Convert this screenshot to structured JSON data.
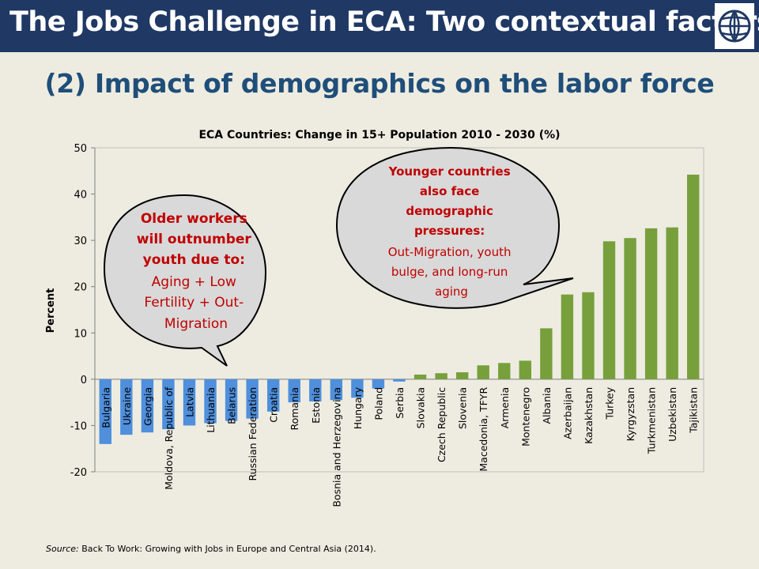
{
  "header": {
    "title": "The Jobs Challenge in ECA: Two contextual factors",
    "subtitle": "(2) Impact of demographics on the labor force"
  },
  "colors": {
    "header_bg": "#1f3864",
    "negative_bar": "#4f8fdc",
    "positive_bar": "#77a03c",
    "callout_text": "#c00000"
  },
  "callouts": {
    "left": {
      "bold_lines": [
        "Older workers",
        "will outnumber",
        "youth due to:"
      ],
      "lines": [
        "Aging + Low",
        "Fertility + Out-",
        "Migration"
      ]
    },
    "right": {
      "bold_lines": [
        "Younger countries",
        "also face",
        "demographic",
        "pressures:"
      ],
      "lines": [
        "Out-Migration, youth",
        "bulge, and long-run",
        "aging"
      ]
    }
  },
  "source": {
    "label": "Source:",
    "text": "Back To Work: Growing with Jobs in Europe and Central Asia (2014)."
  },
  "logo": {
    "icon": "world-bank-globe-icon"
  },
  "chart_data": {
    "type": "bar",
    "title": "ECA Countries: Change in 15+ Population 2010 - 2030 (%)",
    "ylabel": "Percent",
    "xlabel": "",
    "ylim": [
      -20,
      50
    ],
    "yticks": [
      -20,
      -10,
      0,
      10,
      20,
      30,
      40,
      50
    ],
    "grid": false,
    "categories": [
      "Bulgaria",
      "Ukraine",
      "Georgia",
      "Moldova, Republic of",
      "Latvia",
      "Lithuania",
      "Belarus",
      "Russian Federation",
      "Croatia",
      "Romania",
      "Estonia",
      "Bosnia and Herzegovina",
      "Hungary",
      "Poland",
      "Serbia",
      "Slovakia",
      "Czech Republic",
      "Slovenia",
      "Macedonia, TFYR",
      "Armenia",
      "Montenegro",
      "Albania",
      "Azerbaijan",
      "Kazakhstan",
      "Turkey",
      "Kyrgyzstan",
      "Turkmenistan",
      "Uzbekistan",
      "Tajikistan"
    ],
    "values": [
      -14.0,
      -12.0,
      -11.5,
      -10.8,
      -10.0,
      -9.5,
      -9.0,
      -8.5,
      -7.0,
      -5.0,
      -4.8,
      -4.5,
      -4.0,
      -2.0,
      -0.5,
      1.0,
      1.3,
      1.5,
      3.0,
      3.5,
      4.0,
      11.0,
      18.3,
      18.8,
      29.8,
      30.5,
      32.6,
      32.8,
      44.2
    ]
  }
}
